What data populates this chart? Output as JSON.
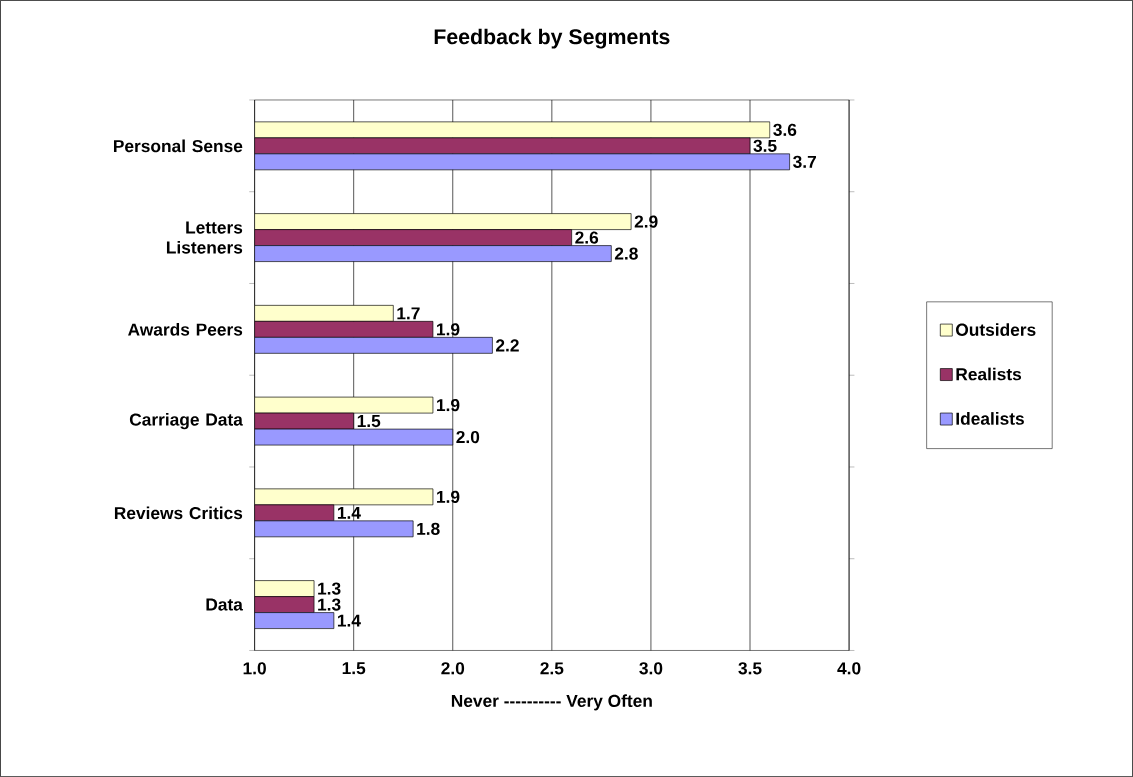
{
  "chart_data": {
    "type": "bar",
    "orientation": "horizontal",
    "title": "Feedback by Segments",
    "xlabel": "Never ---------- Very Often",
    "categories": [
      "Personal Sense",
      "Letters Listeners",
      "Awards Peers",
      "Carriage Data",
      "Reviews Critics",
      "Data"
    ],
    "series": [
      {
        "name": "Outsiders",
        "color": "#ffffcc",
        "values": [
          3.6,
          2.9,
          1.7,
          1.9,
          1.9,
          1.3
        ],
        "value_labels": [
          "3.6",
          "2.9",
          "1.7",
          "1.9",
          "1.9",
          "1.3"
        ]
      },
      {
        "name": "Realists",
        "color": "#993366",
        "values": [
          3.5,
          2.6,
          1.9,
          1.5,
          1.4,
          1.3
        ],
        "value_labels": [
          "3.5",
          "2.6",
          "1.9",
          "1.5",
          "1.4",
          "1.3"
        ]
      },
      {
        "name": "Idealists",
        "color": "#9999ff",
        "values": [
          3.7,
          2.8,
          2.2,
          2.0,
          1.8,
          1.4
        ],
        "value_labels": [
          "3.7",
          "2.8",
          "2.2",
          "2.0",
          "1.8",
          "1.4"
        ]
      }
    ],
    "xlim": [
      1,
      4
    ],
    "xticks": [
      {
        "value": 1,
        "label": "1.0"
      },
      {
        "value": 1.5,
        "label": "1.5"
      },
      {
        "value": 2,
        "label": "2.0"
      },
      {
        "value": 2.5,
        "label": "2.5"
      },
      {
        "value": 3,
        "label": "3.0"
      },
      {
        "value": 3.5,
        "label": "3.5"
      },
      {
        "value": 4,
        "label": "4.0"
      }
    ],
    "grid": "x",
    "legend": "right"
  }
}
